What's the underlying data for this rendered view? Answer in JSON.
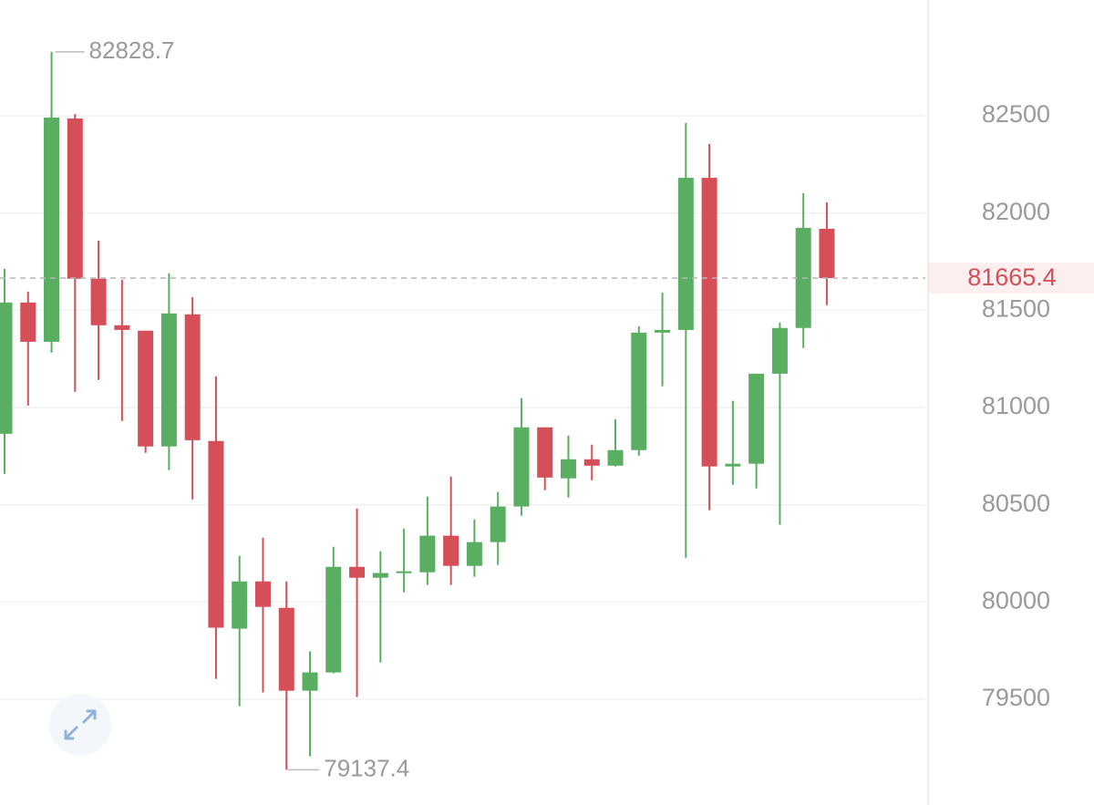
{
  "chart_data": {
    "type": "candlestick",
    "open": [
      80865,
      81540,
      81338,
      82486,
      81662,
      81423,
      81395,
      80800,
      81479,
      80828,
      79863,
      80106,
      79970,
      79544,
      79638,
      80181,
      80125,
      80153,
      80153,
      80341,
      80186,
      80308,
      80491,
      80898,
      80636,
      80734,
      80701,
      80781,
      81385,
      81399,
      82181,
      80697,
      80711,
      81174,
      81409,
      81919
    ],
    "high": [
      81713,
      81596,
      82828.7,
      82509,
      81858,
      81657,
      81395,
      81690,
      81568,
      81160,
      80238,
      80331,
      80106,
      79746,
      80284,
      80481,
      80261,
      80378,
      80542,
      80645,
      80425,
      80566,
      81048,
      80898,
      80856,
      80809,
      80940,
      81418,
      81591,
      82463,
      82355,
      81034,
      81174,
      81437,
      82102,
      82055
    ],
    "low": [
      80659,
      81010,
      81282,
      81081,
      81142,
      80931,
      80767,
      80678,
      80528,
      79605,
      79465,
      79535,
      79137.4,
      79207,
      79634,
      79512,
      79690,
      80050,
      80088,
      80088,
      80130,
      80191,
      80444,
      80575,
      80537,
      80626,
      80697,
      80753,
      81109,
      80228,
      80472,
      80603,
      80584,
      80397,
      81306,
      81526
    ],
    "close": [
      81540,
      81338,
      82491,
      81662,
      81423,
      81399,
      80800,
      81484,
      80832,
      79868,
      80106,
      79975,
      79544,
      79638,
      80181,
      80125,
      80149,
      80158,
      80341,
      80186,
      80308,
      80491,
      80898,
      80640,
      80734,
      80701,
      80781,
      81385,
      81399,
      82181,
      80697,
      80711,
      81174,
      81409,
      81924,
      81665.4
    ],
    "up_color": "#5aae62",
    "down_color": "#d54f58",
    "ylim": [
      79000,
      83100
    ],
    "yticks": [
      79500,
      80000,
      80500,
      81000,
      81500,
      82000,
      82500
    ],
    "grid": true
  }
}
